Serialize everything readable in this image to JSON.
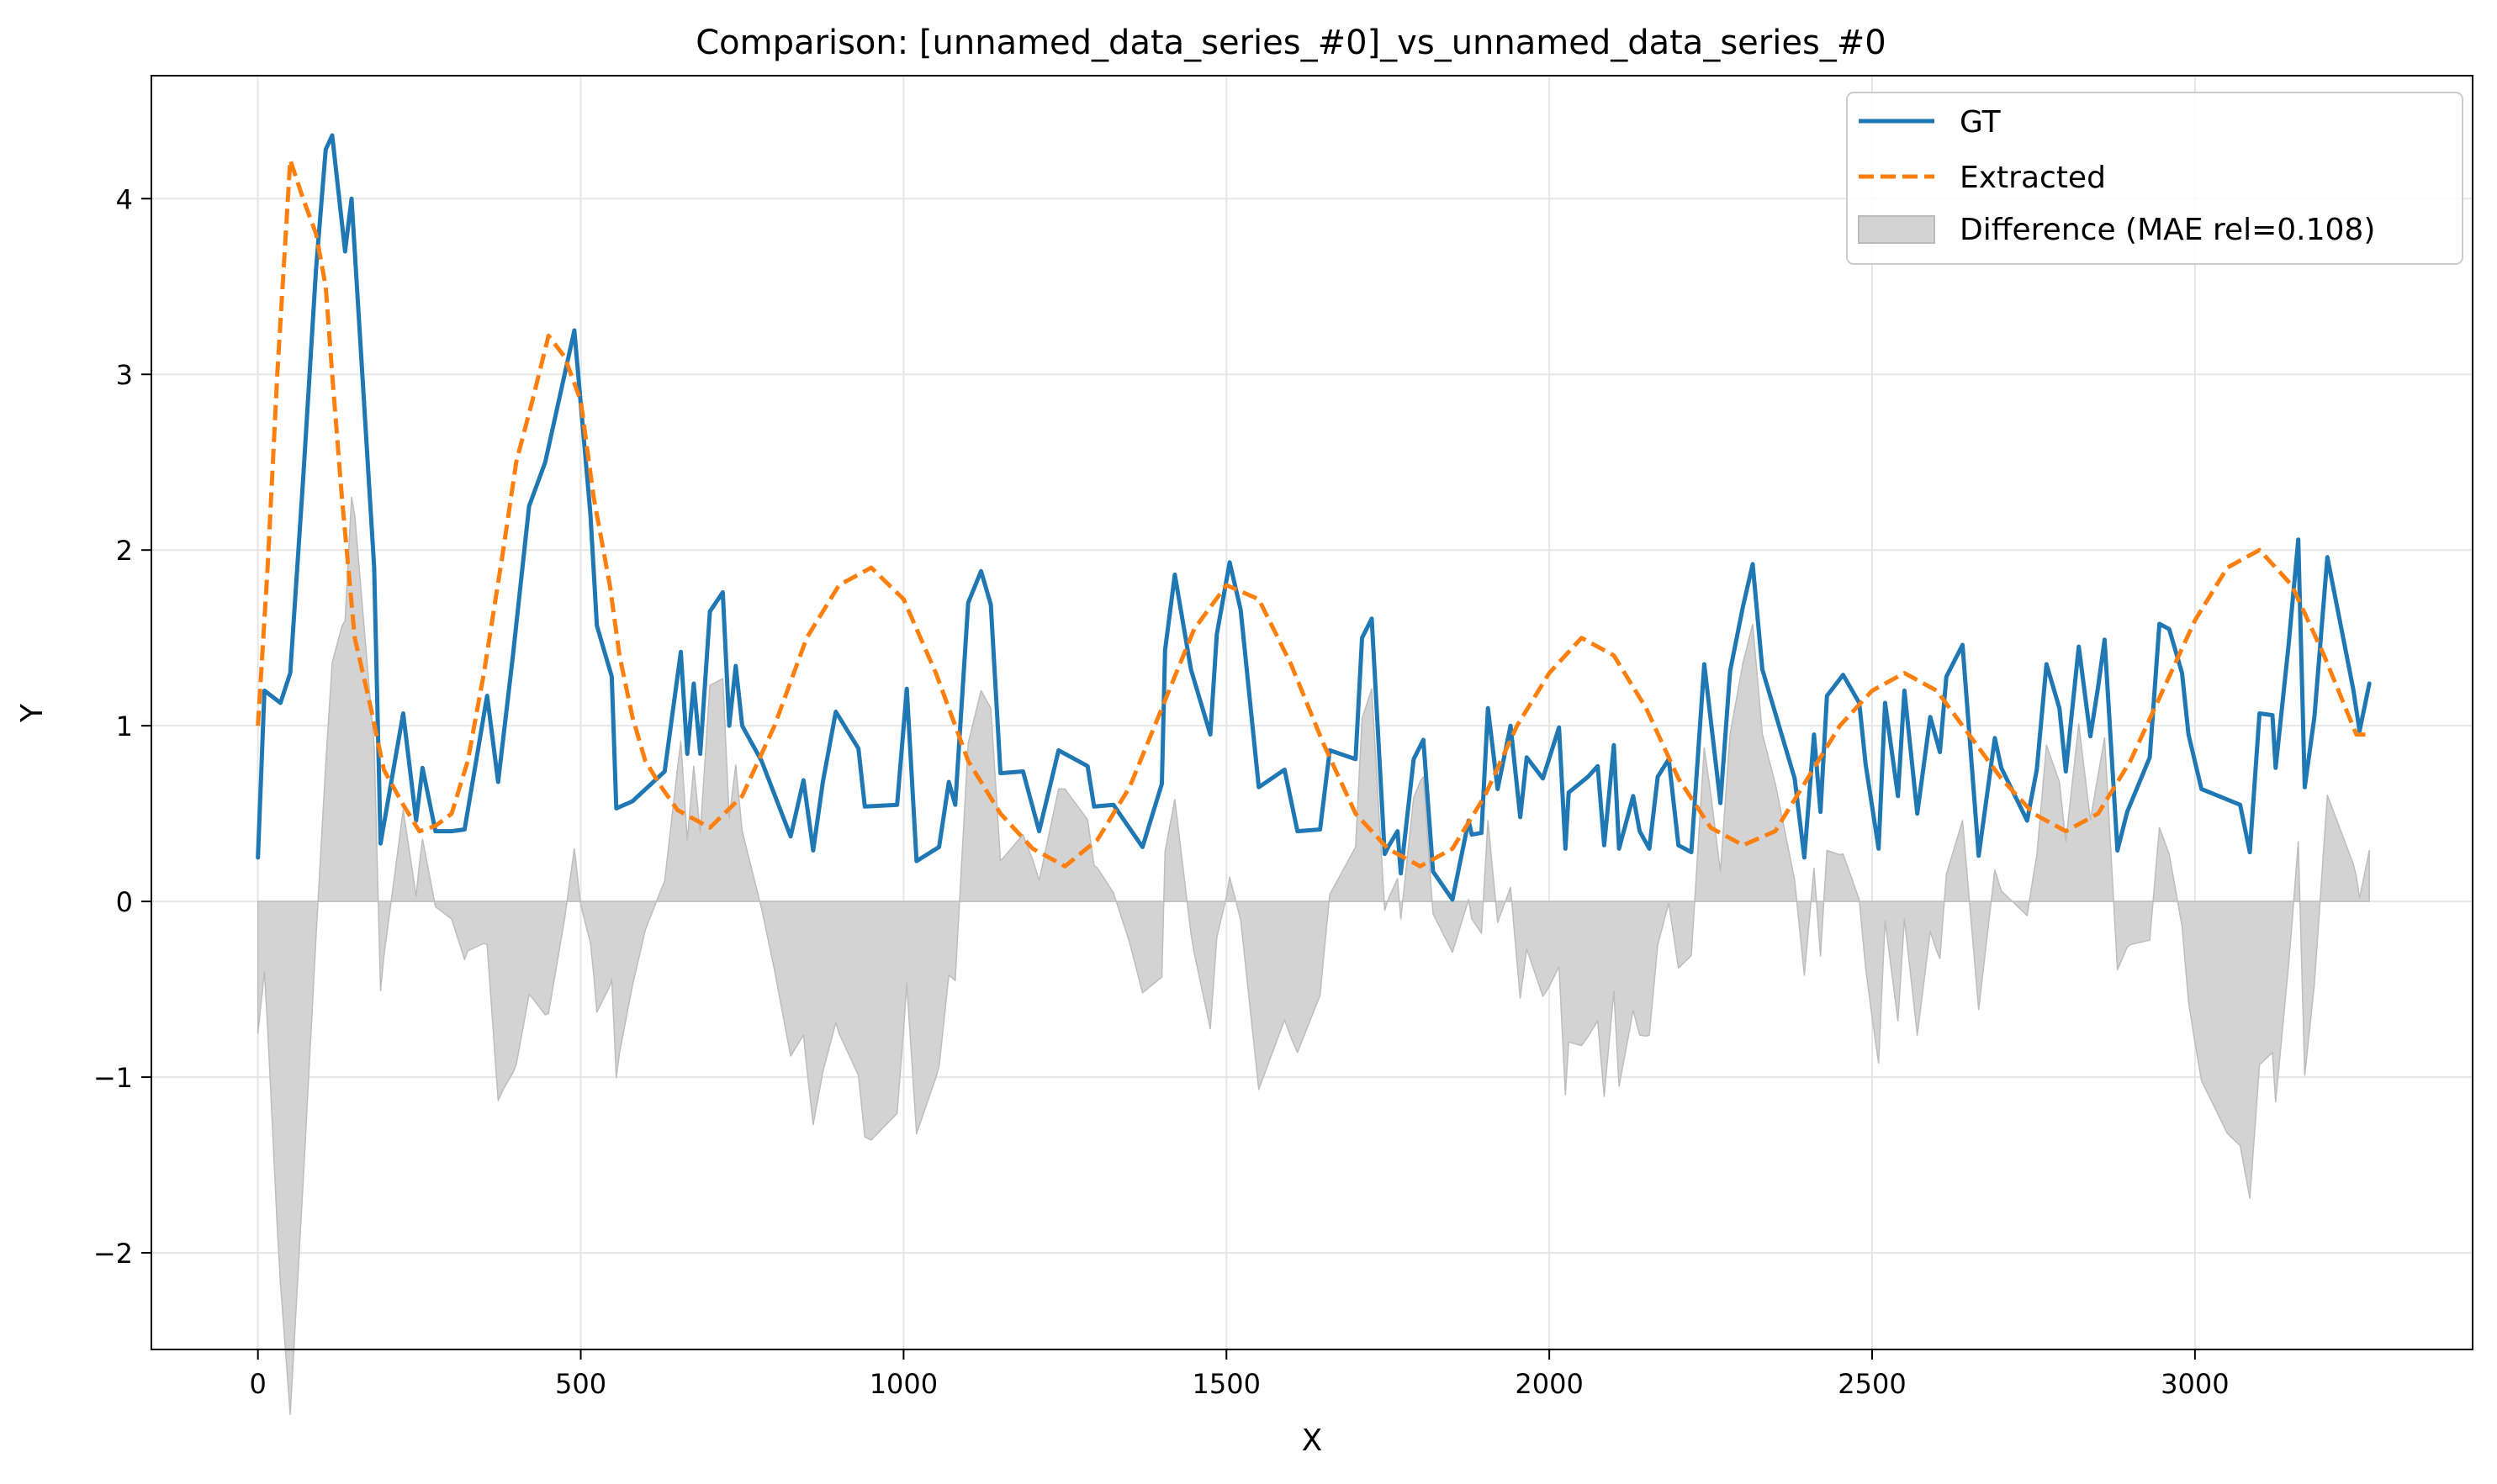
{
  "chart_data": {
    "type": "line",
    "title": "Comparison: [unnamed_data_series_#0]_vs_unnamed_data_series_#0",
    "xlabel": "X",
    "ylabel": "Y",
    "xlim": [
      -165,
      3430
    ],
    "ylim": [
      -2.55,
      4.7
    ],
    "xticks": [
      0,
      500,
      1000,
      1500,
      2000,
      2500,
      3000
    ],
    "yticks": [
      -2,
      -1,
      0,
      1,
      2,
      3,
      4
    ],
    "x_tick_labels": [
      "0",
      "500",
      "1000",
      "1500",
      "2000",
      "2500",
      "3000"
    ],
    "y_tick_labels": [
      "−2",
      "−1",
      "0",
      "1",
      "2",
      "3",
      "4"
    ],
    "grid": true,
    "legend_position": "top-right",
    "series": [
      {
        "name": "GT",
        "color": "#1f77b4",
        "style": "solid",
        "points": [
          [
            0,
            0.25
          ],
          [
            10,
            1.2
          ],
          [
            35,
            1.13
          ],
          [
            50,
            1.3
          ],
          [
            70,
            2.4
          ],
          [
            90,
            3.6
          ],
          [
            105,
            4.28
          ],
          [
            115,
            4.36
          ],
          [
            135,
            3.7
          ],
          [
            145,
            4.0
          ],
          [
            180,
            1.9
          ],
          [
            190,
            0.33
          ],
          [
            225,
            1.07
          ],
          [
            245,
            0.46
          ],
          [
            255,
            0.76
          ],
          [
            275,
            0.4
          ],
          [
            300,
            0.4
          ],
          [
            320,
            0.41
          ],
          [
            355,
            1.17
          ],
          [
            372,
            0.68
          ],
          [
            395,
            1.4
          ],
          [
            420,
            2.25
          ],
          [
            445,
            2.5
          ],
          [
            490,
            3.25
          ],
          [
            515,
            2.2
          ],
          [
            525,
            1.57
          ],
          [
            548,
            1.28
          ],
          [
            555,
            0.53
          ],
          [
            580,
            0.57
          ],
          [
            630,
            0.74
          ],
          [
            655,
            1.42
          ],
          [
            665,
            0.84
          ],
          [
            675,
            1.24
          ],
          [
            685,
            0.84
          ],
          [
            700,
            1.65
          ],
          [
            720,
            1.76
          ],
          [
            730,
            1.0
          ],
          [
            740,
            1.34
          ],
          [
            750,
            1.0
          ],
          [
            780,
            0.8
          ],
          [
            825,
            0.37
          ],
          [
            845,
            0.69
          ],
          [
            860,
            0.29
          ],
          [
            875,
            0.68
          ],
          [
            895,
            1.08
          ],
          [
            930,
            0.87
          ],
          [
            940,
            0.54
          ],
          [
            990,
            0.55
          ],
          [
            1005,
            1.21
          ],
          [
            1020,
            0.23
          ],
          [
            1055,
            0.31
          ],
          [
            1070,
            0.68
          ],
          [
            1080,
            0.55
          ],
          [
            1100,
            1.7
          ],
          [
            1120,
            1.88
          ],
          [
            1135,
            1.69
          ],
          [
            1150,
            0.73
          ],
          [
            1185,
            0.74
          ],
          [
            1210,
            0.4
          ],
          [
            1240,
            0.86
          ],
          [
            1285,
            0.77
          ],
          [
            1295,
            0.54
          ],
          [
            1325,
            0.55
          ],
          [
            1370,
            0.31
          ],
          [
            1400,
            0.67
          ],
          [
            1405,
            1.43
          ],
          [
            1420,
            1.86
          ],
          [
            1445,
            1.32
          ],
          [
            1475,
            0.95
          ],
          [
            1485,
            1.52
          ],
          [
            1505,
            1.93
          ],
          [
            1522,
            1.66
          ],
          [
            1550,
            0.65
          ],
          [
            1590,
            0.75
          ],
          [
            1610,
            0.4
          ],
          [
            1645,
            0.41
          ],
          [
            1660,
            0.86
          ],
          [
            1700,
            0.81
          ],
          [
            1710,
            1.5
          ],
          [
            1725,
            1.61
          ],
          [
            1745,
            0.27
          ],
          [
            1752,
            0.32
          ],
          [
            1765,
            0.4
          ],
          [
            1770,
            0.16
          ],
          [
            1790,
            0.81
          ],
          [
            1805,
            0.92
          ],
          [
            1820,
            0.17
          ],
          [
            1850,
            0.01
          ],
          [
            1875,
            0.46
          ],
          [
            1880,
            0.38
          ],
          [
            1895,
            0.39
          ],
          [
            1905,
            1.1
          ],
          [
            1920,
            0.64
          ],
          [
            1940,
            1.0
          ],
          [
            1955,
            0.48
          ],
          [
            1965,
            0.82
          ],
          [
            1990,
            0.7
          ],
          [
            2015,
            0.99
          ],
          [
            2025,
            0.3
          ],
          [
            2030,
            0.62
          ],
          [
            2060,
            0.71
          ],
          [
            2075,
            0.77
          ],
          [
            2085,
            0.32
          ],
          [
            2100,
            0.89
          ],
          [
            2108,
            0.3
          ],
          [
            2130,
            0.6
          ],
          [
            2140,
            0.4
          ],
          [
            2155,
            0.3
          ],
          [
            2168,
            0.71
          ],
          [
            2185,
            0.81
          ],
          [
            2200,
            0.32
          ],
          [
            2220,
            0.28
          ],
          [
            2240,
            1.35
          ],
          [
            2265,
            0.56
          ],
          [
            2280,
            1.31
          ],
          [
            2300,
            1.68
          ],
          [
            2315,
            1.92
          ],
          [
            2330,
            1.32
          ],
          [
            2380,
            0.7
          ],
          [
            2395,
            0.25
          ],
          [
            2410,
            0.95
          ],
          [
            2420,
            0.51
          ],
          [
            2430,
            1.17
          ],
          [
            2455,
            1.29
          ],
          [
            2480,
            1.13
          ],
          [
            2490,
            0.78
          ],
          [
            2510,
            0.3
          ],
          [
            2520,
            1.13
          ],
          [
            2540,
            0.6
          ],
          [
            2550,
            1.2
          ],
          [
            2570,
            0.5
          ],
          [
            2590,
            1.05
          ],
          [
            2605,
            0.85
          ],
          [
            2615,
            1.28
          ],
          [
            2640,
            1.46
          ],
          [
            2665,
            0.26
          ],
          [
            2690,
            0.93
          ],
          [
            2700,
            0.76
          ],
          [
            2740,
            0.46
          ],
          [
            2755,
            0.75
          ],
          [
            2770,
            1.35
          ],
          [
            2790,
            1.1
          ],
          [
            2800,
            0.74
          ],
          [
            2820,
            1.45
          ],
          [
            2838,
            0.94
          ],
          [
            2850,
            1.22
          ],
          [
            2860,
            1.49
          ],
          [
            2880,
            0.29
          ],
          [
            2895,
            0.51
          ],
          [
            2930,
            0.82
          ],
          [
            2945,
            1.58
          ],
          [
            2960,
            1.55
          ],
          [
            2980,
            1.3
          ],
          [
            2990,
            0.95
          ],
          [
            3010,
            0.64
          ],
          [
            3070,
            0.55
          ],
          [
            3085,
            0.28
          ],
          [
            3100,
            1.07
          ],
          [
            3120,
            1.06
          ],
          [
            3125,
            0.76
          ],
          [
            3145,
            1.46
          ],
          [
            3160,
            2.06
          ],
          [
            3170,
            0.65
          ],
          [
            3185,
            1.05
          ],
          [
            3205,
            1.96
          ],
          [
            3245,
            1.21
          ],
          [
            3255,
            0.97
          ],
          [
            3270,
            1.24
          ]
        ]
      },
      {
        "name": "Extracted",
        "color": "#ff7f0e",
        "style": "dashed",
        "points": [
          [
            0,
            1.0
          ],
          [
            15,
            1.9
          ],
          [
            30,
            3.0
          ],
          [
            50,
            4.22
          ],
          [
            70,
            4.0
          ],
          [
            90,
            3.8
          ],
          [
            105,
            3.5
          ],
          [
            115,
            3.0
          ],
          [
            130,
            2.3
          ],
          [
            150,
            1.5
          ],
          [
            175,
            1.1
          ],
          [
            195,
            0.75
          ],
          [
            225,
            0.55
          ],
          [
            250,
            0.4
          ],
          [
            275,
            0.43
          ],
          [
            300,
            0.5
          ],
          [
            325,
            0.8
          ],
          [
            350,
            1.3
          ],
          [
            380,
            2.0
          ],
          [
            400,
            2.5
          ],
          [
            425,
            2.85
          ],
          [
            450,
            3.22
          ],
          [
            475,
            3.1
          ],
          [
            500,
            2.85
          ],
          [
            520,
            2.3
          ],
          [
            545,
            1.8
          ],
          [
            560,
            1.4
          ],
          [
            580,
            1.05
          ],
          [
            600,
            0.8
          ],
          [
            625,
            0.65
          ],
          [
            650,
            0.52
          ],
          [
            700,
            0.42
          ],
          [
            750,
            0.6
          ],
          [
            800,
            1.0
          ],
          [
            850,
            1.5
          ],
          [
            900,
            1.8
          ],
          [
            950,
            1.9
          ],
          [
            1000,
            1.72
          ],
          [
            1050,
            1.3
          ],
          [
            1100,
            0.8
          ],
          [
            1150,
            0.5
          ],
          [
            1200,
            0.3
          ],
          [
            1250,
            0.2
          ],
          [
            1300,
            0.35
          ],
          [
            1350,
            0.65
          ],
          [
            1400,
            1.1
          ],
          [
            1450,
            1.55
          ],
          [
            1500,
            1.8
          ],
          [
            1550,
            1.72
          ],
          [
            1600,
            1.35
          ],
          [
            1650,
            0.9
          ],
          [
            1700,
            0.5
          ],
          [
            1750,
            0.3
          ],
          [
            1800,
            0.2
          ],
          [
            1850,
            0.3
          ],
          [
            1900,
            0.6
          ],
          [
            1950,
            1.0
          ],
          [
            2000,
            1.3
          ],
          [
            2050,
            1.5
          ],
          [
            2100,
            1.4
          ],
          [
            2150,
            1.1
          ],
          [
            2200,
            0.7
          ],
          [
            2250,
            0.42
          ],
          [
            2300,
            0.32
          ],
          [
            2350,
            0.4
          ],
          [
            2400,
            0.7
          ],
          [
            2450,
            1.0
          ],
          [
            2500,
            1.2
          ],
          [
            2550,
            1.3
          ],
          [
            2600,
            1.2
          ],
          [
            2650,
            0.95
          ],
          [
            2700,
            0.7
          ],
          [
            2750,
            0.5
          ],
          [
            2800,
            0.4
          ],
          [
            2850,
            0.5
          ],
          [
            2900,
            0.8
          ],
          [
            2950,
            1.2
          ],
          [
            3000,
            1.6
          ],
          [
            3050,
            1.9
          ],
          [
            3100,
            2.0
          ],
          [
            3150,
            1.8
          ],
          [
            3200,
            1.4
          ],
          [
            3250,
            0.95
          ],
          [
            3270,
            0.95
          ]
        ]
      },
      {
        "name": "Difference (MAE rel=0.108)",
        "color": "#bbbbbb",
        "style": "fill",
        "fill_between": [
          "GT",
          "Extracted"
        ],
        "sign": "GT - Extracted"
      }
    ]
  },
  "legend": {
    "items": [
      {
        "label": "GT",
        "kind": "line",
        "color": "#1f77b4"
      },
      {
        "label": "Extracted",
        "kind": "dashed",
        "color": "#ff7f0e"
      },
      {
        "label": "Difference (MAE rel=0.108)",
        "kind": "patch",
        "color": "#d3d3d3"
      }
    ]
  }
}
